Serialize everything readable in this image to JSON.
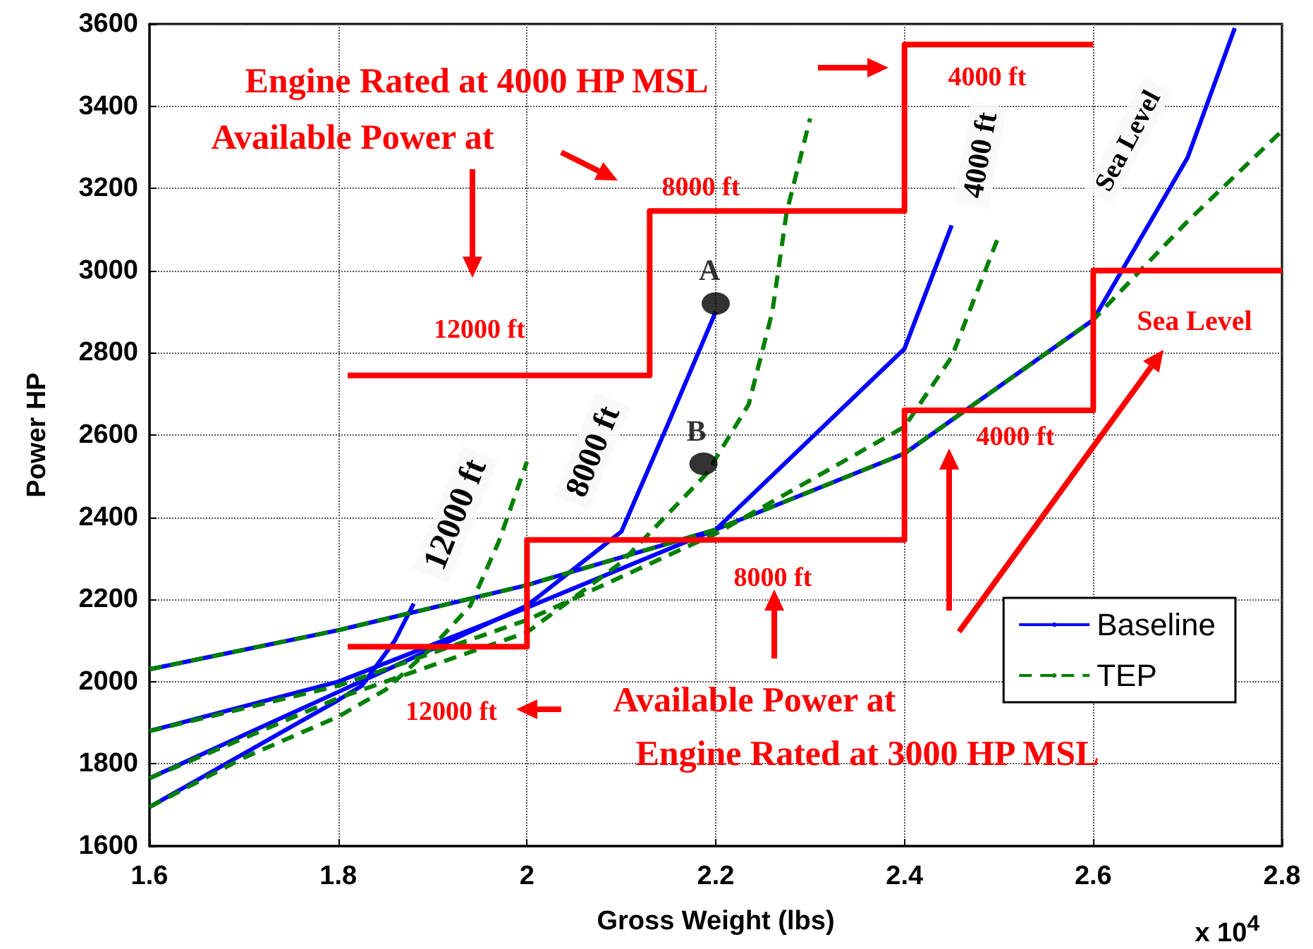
{
  "chart_data": {
    "type": "line",
    "xlabel": "Gross Weight (lbs)",
    "ylabel": "Power HP",
    "xlim": [
      1.6,
      2.8
    ],
    "xticks": [
      1.6,
      1.8,
      2,
      2.2,
      2.4,
      2.6,
      2.8
    ],
    "ylim": [
      1600,
      3600
    ],
    "yticks": [
      1600,
      1800,
      2000,
      2200,
      2400,
      2600,
      2800,
      3000,
      3200,
      3400,
      3600
    ],
    "grid": true,
    "legend": "bottom right",
    "marker": "none",
    "series": [
      {
        "name": "Baseline",
        "color": "#0000ff",
        "line_style": "solid",
        "x": [
          1.6,
          1.8,
          2.0,
          2.2,
          2.4,
          2.6,
          2.7,
          2.75
        ],
        "values": [
          2030,
          2125,
          2235,
          2370,
          2555,
          2880,
          3275,
          3590
        ]
      },
      {
        "color": "#0000ff",
        "line_style": "solid",
        "x": [
          1.6,
          1.8,
          2.0,
          2.2,
          2.4,
          2.45
        ],
        "values": [
          1880,
          2000,
          2180,
          2370,
          2810,
          3110
        ]
      },
      {
        "color": "#0000ff",
        "line_style": "solid",
        "x": [
          1.6,
          1.8,
          2.0,
          2.1,
          2.15,
          2.2
        ],
        "values": [
          1765,
          1975,
          2185,
          2365,
          2630,
          2900
        ]
      },
      {
        "color": "#0000ff",
        "line_style": "solid",
        "x": [
          1.6,
          1.7,
          1.8,
          1.825,
          1.86,
          1.88
        ],
        "values": [
          1695,
          1825,
          1955,
          1990,
          2100,
          2190
        ]
      },
      {
        "name": "TEP",
        "color": "#008000",
        "line_style": "dashed",
        "x": [
          1.6,
          1.8,
          2.0,
          2.2,
          2.4,
          2.6,
          2.7,
          2.8
        ],
        "values": [
          2030,
          2125,
          2235,
          2370,
          2555,
          2880,
          3120,
          3340
        ]
      },
      {
        "color": "#008000",
        "line_style": "dashed",
        "x": [
          1.6,
          1.8,
          2.0,
          2.2,
          2.4,
          2.45,
          2.5
        ],
        "values": [
          1880,
          1990,
          2150,
          2360,
          2620,
          2790,
          3085
        ]
      },
      {
        "color": "#008000",
        "line_style": "dashed",
        "x": [
          1.6,
          1.8,
          2.0,
          2.1,
          2.19,
          2.235,
          2.26,
          2.275,
          2.3
        ],
        "values": [
          1765,
          1960,
          2120,
          2290,
          2505,
          2675,
          2900,
          3140,
          3370
        ]
      },
      {
        "color": "#008000",
        "line_style": "dashed",
        "x": [
          1.6,
          1.7,
          1.8,
          1.85,
          1.9,
          1.94,
          1.97,
          2.0
        ],
        "values": [
          1695,
          1815,
          1915,
          1980,
          2085,
          2185,
          2340,
          2535
        ]
      },
      {
        "type": "step",
        "color": "#ff0000",
        "line_style": "solid",
        "x": [
          1.81,
          2.0,
          2.4,
          2.6,
          2.8
        ],
        "values": [
          2085,
          2345,
          2660,
          3000,
          3000
        ]
      },
      {
        "type": "step",
        "color": "#ff0000",
        "line_style": "solid",
        "x": [
          1.81,
          2.13,
          2.4,
          2.6
        ],
        "values": [
          2745,
          3145,
          3550,
          3550
        ]
      },
      {
        "type": "scatter",
        "color": "#000000",
        "marker": "circle",
        "x": [
          2.2,
          2.187
        ],
        "values": [
          2920,
          2530
        ],
        "value_labels": [
          "A",
          "B"
        ]
      }
    ],
    "annotations": [
      "Engine Rated at 4000 HP MSL",
      "Available Power at",
      "12000 ft",
      "8000 ft",
      "4000 ft",
      "Sea Level",
      "4000 ft",
      "8000 ft",
      "12000 ft",
      "Available Power at",
      "Engine Rated at 3000 HP MSL",
      "12000 ft",
      "8000 ft",
      "4000 ft",
      "Sea Level",
      "x 10$^{4}$"
    ]
  }
}
